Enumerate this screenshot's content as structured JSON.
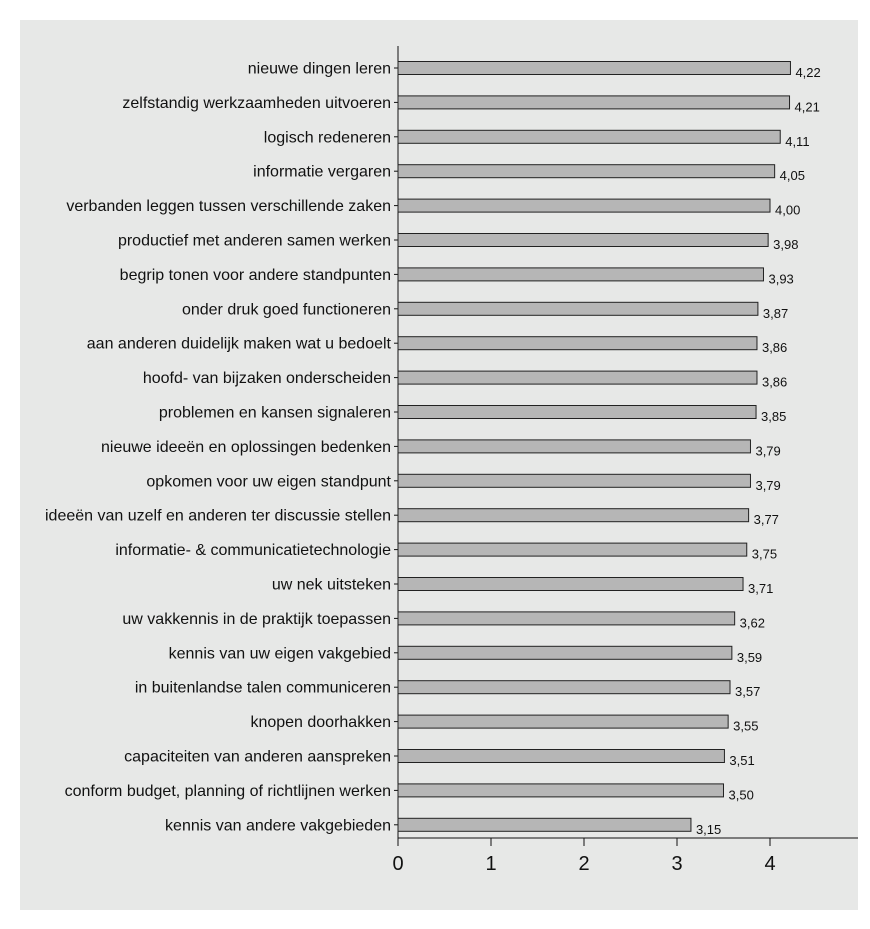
{
  "chart_data": {
    "type": "bar",
    "orientation": "horizontal",
    "categories": [
      "nieuwe dingen leren",
      "zelfstandig werkzaamheden uitvoeren",
      "logisch redeneren",
      "informatie vergaren",
      "verbanden leggen tussen verschillende zaken",
      "productief met anderen samen werken",
      "begrip tonen voor andere standpunten",
      "onder druk goed functioneren",
      "aan anderen duidelijk maken wat u bedoelt",
      "hoofd- van bijzaken onderscheiden",
      "problemen en kansen signaleren",
      "nieuwe ideeën en oplossingen bedenken",
      "opkomen voor uw eigen standpunt",
      "ideeën van uzelf en anderen ter discussie stellen",
      "informatie- & communicatietechnologie",
      "uw nek uitsteken",
      "uw vakkennis in de praktijk toepassen",
      "kennis van uw eigen vakgebied",
      "in buitenlandse talen communiceren",
      "knopen doorhakken",
      "capaciteiten van anderen aanspreken",
      "conform budget, planning of richtlijnen werken",
      "kennis van andere vakgebieden"
    ],
    "values": [
      4.22,
      4.21,
      4.11,
      4.05,
      4.0,
      3.98,
      3.93,
      3.87,
      3.86,
      3.86,
      3.85,
      3.79,
      3.79,
      3.77,
      3.75,
      3.71,
      3.62,
      3.59,
      3.57,
      3.55,
      3.51,
      3.5,
      3.15
    ],
    "value_labels": [
      "4,22",
      "4,21",
      "4,11",
      "4,05",
      "4,00",
      "3,98",
      "3,93",
      "3,87",
      "3,86",
      "3,86",
      "3,85",
      "3,79",
      "3,79",
      "3,77",
      "3,75",
      "3,71",
      "3,62",
      "3,59",
      "3,57",
      "3,55",
      "3,51",
      "3,50",
      "3,15"
    ],
    "xlim": [
      0,
      5
    ],
    "x_ticks": [
      "0",
      "1",
      "2",
      "3",
      "4",
      "5"
    ],
    "title": "",
    "xlabel": "",
    "ylabel": "",
    "grid": false,
    "legend": "none",
    "bar_color": "#b6b6b6",
    "bar_edge_color": "#222222",
    "background_color": "#e7e8e7"
  }
}
